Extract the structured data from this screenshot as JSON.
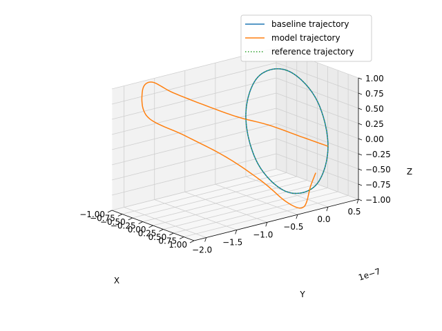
{
  "chart_data": {
    "type": "line",
    "projection": "3d",
    "title": "",
    "xlabel": "X",
    "ylabel": "Y",
    "zlabel": "Z",
    "xlim": [
      -1.0,
      1.0
    ],
    "ylim": [
      -2.2e-07,
      5e-08
    ],
    "zlim": [
      -1.0,
      1.0
    ],
    "x_ticks": [
      "−1.00",
      "−0.75",
      "−0.50",
      "−0.25",
      "0.00",
      "0.25",
      "0.50",
      "0.75",
      "1.00"
    ],
    "y_ticks": [
      "−2.0",
      "−1.5",
      "−1.0",
      "−0.5",
      "0.0",
      "0.5"
    ],
    "z_ticks": [
      "1.00",
      "0.75",
      "0.50",
      "0.25",
      "0.00",
      "−0.25",
      "−0.50",
      "−0.75",
      "−1.00"
    ],
    "y_offset_label": "1e−7",
    "grid": true,
    "legend": "top-right",
    "series": [
      {
        "name": "baseline trajectory",
        "color": "#1f77b4",
        "style": "solid",
        "shape": "closed loop in the x-z plane at y ≈ 0",
        "x": [
          0,
          0.38,
          0.71,
          0.92,
          1.0,
          0.92,
          0.71,
          0.38,
          0,
          -0.38,
          -0.71,
          -0.92,
          -1.0,
          -0.92,
          -0.71,
          -0.38,
          0
        ],
        "y": [
          0,
          0,
          0,
          0,
          0,
          0,
          0,
          0,
          0,
          0,
          0,
          0,
          0,
          0,
          0,
          0,
          0
        ],
        "z": [
          1.0,
          0.92,
          0.71,
          0.38,
          0,
          -0.38,
          -0.71,
          -0.92,
          -1.0,
          -0.92,
          -0.71,
          -0.38,
          0,
          0.38,
          0.71,
          0.92,
          1.0
        ]
      },
      {
        "name": "model trajectory",
        "color": "#ff7f0e",
        "style": "solid",
        "shape": "open curve drifting toward negative y",
        "x": [
          1.0,
          0.7,
          0.3,
          -0.1,
          -0.5,
          -0.85,
          -1.0,
          -0.85,
          -0.5,
          -0.1,
          0.3,
          0.65,
          0.9,
          1.0,
          0.95,
          0.85
        ],
        "y": [
          0,
          -2.5e-08,
          -5e-08,
          -7.5e-08,
          -1e-07,
          -1.3e-07,
          -1.55e-07,
          -1.8e-07,
          -1.95e-07,
          -1.6e-07,
          -1.2e-07,
          -8.5e-08,
          -6e-08,
          -4e-08,
          -2.5e-08,
          -1e-08
        ],
        "z": [
          0,
          0.15,
          0.3,
          0.4,
          0.55,
          0.75,
          0.95,
          0.9,
          0.6,
          0.3,
          -0.05,
          -0.45,
          -0.8,
          -0.9,
          -0.6,
          -0.45
        ]
      },
      {
        "name": "reference trajectory",
        "color": "#2ca02c",
        "style": "dotted",
        "shape": "same closed loop as the baseline",
        "x": [
          0,
          0.38,
          0.71,
          0.92,
          1.0,
          0.92,
          0.71,
          0.38,
          0,
          -0.38,
          -0.71,
          -0.92,
          -1.0,
          -0.92,
          -0.71,
          -0.38,
          0
        ],
        "y": [
          0,
          0,
          0,
          0,
          0,
          0,
          0,
          0,
          0,
          0,
          0,
          0,
          0,
          0,
          0,
          0,
          0
        ],
        "z": [
          1.0,
          0.92,
          0.71,
          0.38,
          0,
          -0.38,
          -0.71,
          -0.92,
          -1.0,
          -0.92,
          -0.71,
          -0.38,
          0,
          0.38,
          0.71,
          0.92,
          1.0
        ]
      }
    ]
  }
}
